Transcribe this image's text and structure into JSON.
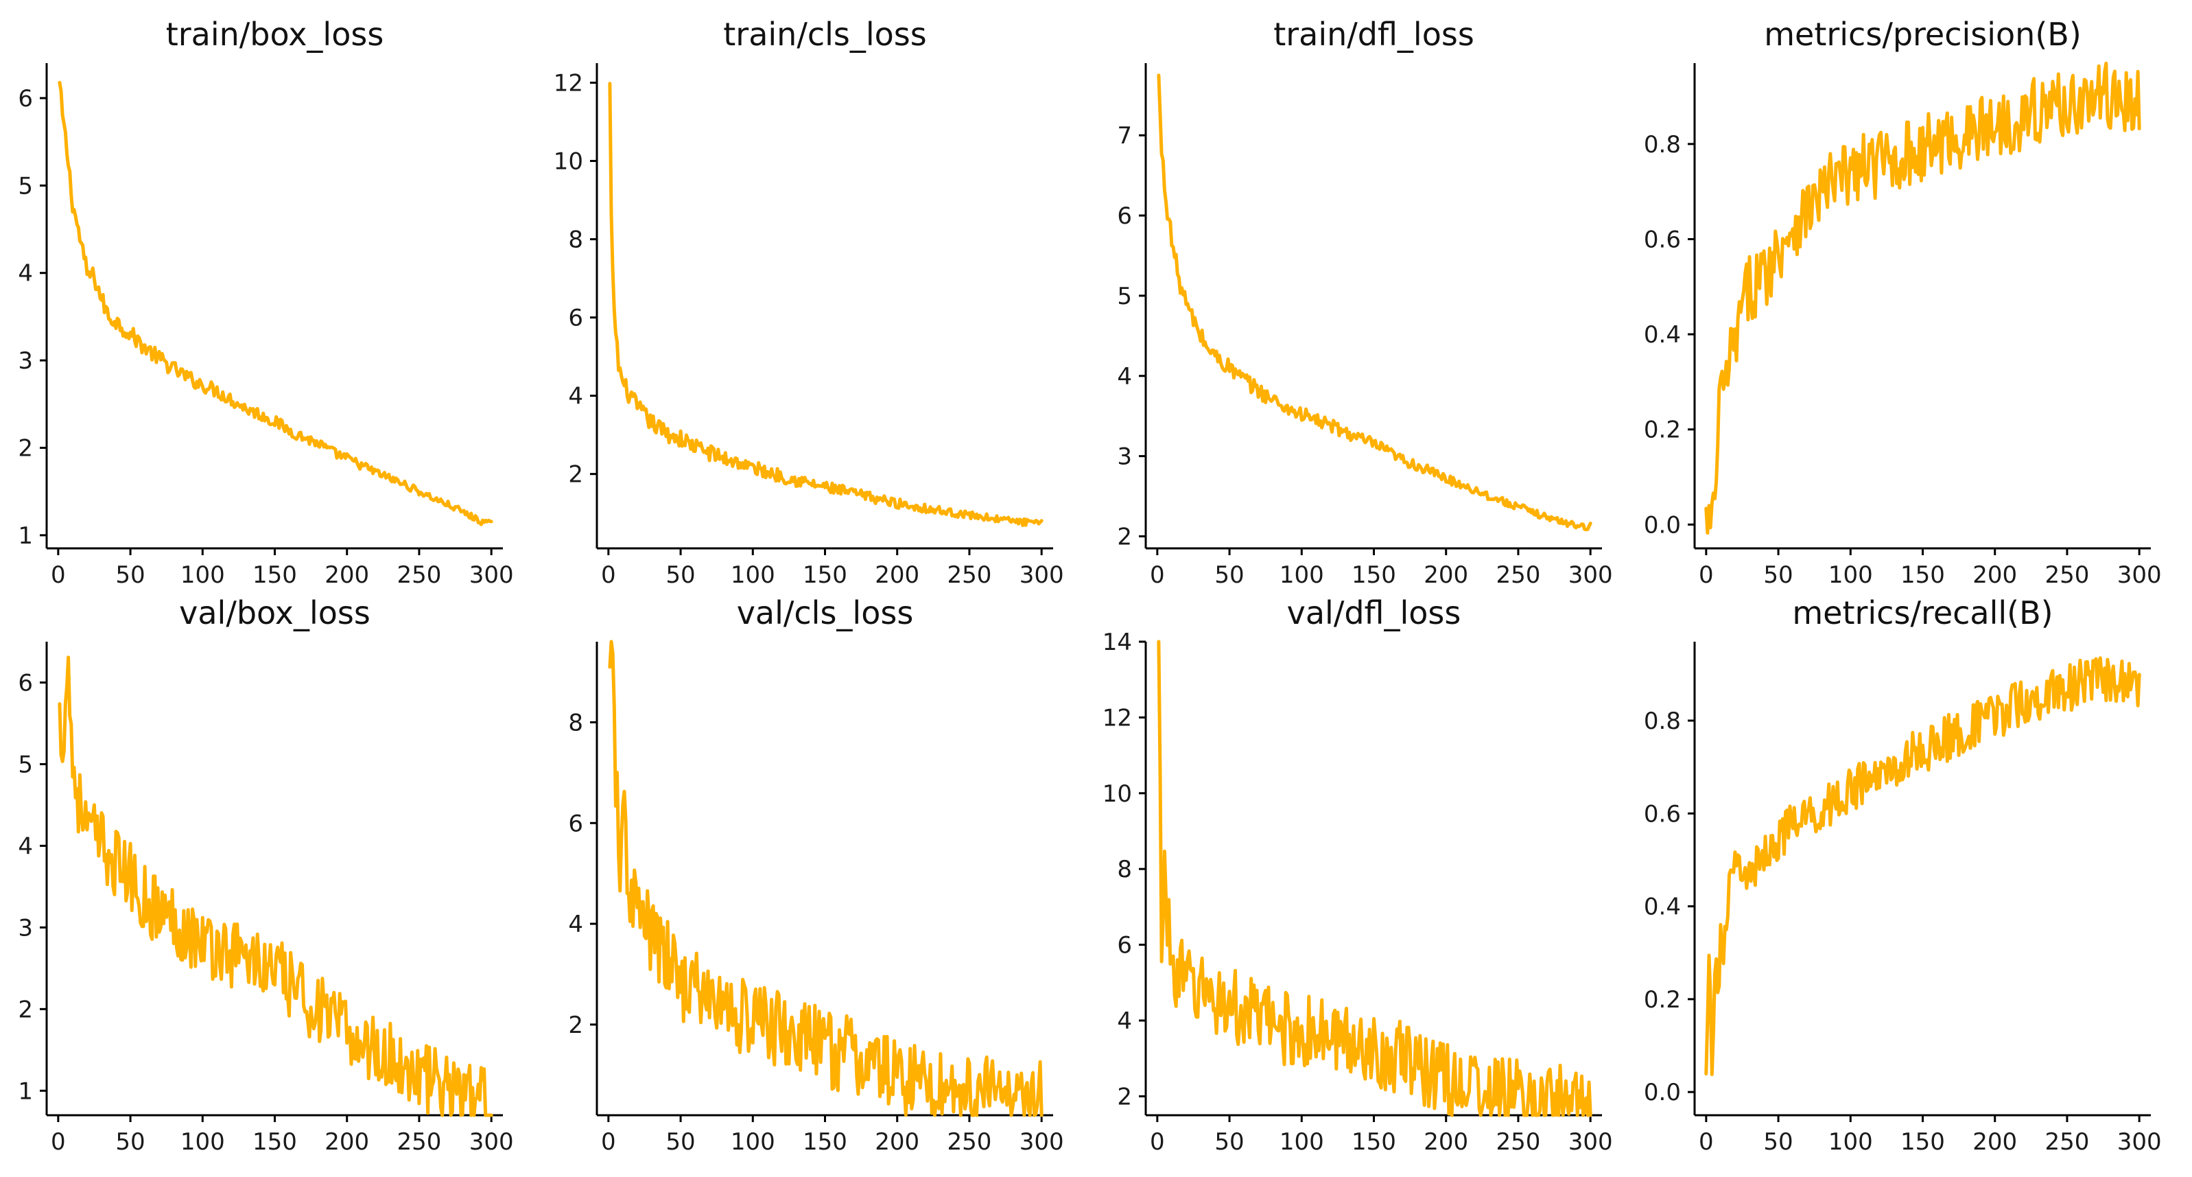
{
  "figure": {
    "line_color": "#FFB000"
  },
  "chart_data": [
    {
      "type": "line",
      "title": "train/box_loss",
      "xlim": [
        -8,
        308
      ],
      "ylim": [
        0.85,
        6.4
      ],
      "xticks": [
        0,
        50,
        100,
        150,
        200,
        250,
        300
      ],
      "yticks": [
        1,
        2,
        3,
        4,
        5,
        6
      ],
      "x": [
        1,
        3,
        6,
        10,
        15,
        20,
        25,
        30,
        35,
        40,
        50,
        60,
        70,
        80,
        90,
        100,
        110,
        120,
        130,
        140,
        150,
        160,
        170,
        180,
        190,
        200,
        210,
        220,
        230,
        240,
        250,
        260,
        270,
        280,
        290,
        300
      ],
      "y": [
        6.15,
        5.8,
        5.4,
        4.8,
        4.4,
        4.0,
        3.95,
        3.7,
        3.5,
        3.45,
        3.3,
        3.15,
        3.02,
        2.9,
        2.8,
        2.72,
        2.65,
        2.55,
        2.45,
        2.38,
        2.3,
        2.2,
        2.12,
        2.05,
        1.95,
        1.88,
        1.8,
        1.72,
        1.65,
        1.58,
        1.5,
        1.42,
        1.35,
        1.27,
        1.18,
        1.12
      ],
      "noise": 0.04
    },
    {
      "type": "line",
      "title": "train/cls_loss",
      "xlim": [
        -8,
        308
      ],
      "ylim": [
        0.1,
        12.5
      ],
      "xticks": [
        0,
        50,
        100,
        150,
        200,
        250,
        300
      ],
      "yticks": [
        2,
        4,
        6,
        8,
        10,
        12
      ],
      "x": [
        1,
        2,
        3,
        5,
        7,
        10,
        15,
        20,
        30,
        40,
        50,
        60,
        70,
        80,
        90,
        100,
        120,
        140,
        160,
        180,
        200,
        220,
        240,
        260,
        280,
        300
      ],
      "y": [
        11.9,
        8.5,
        7.0,
        5.6,
        4.8,
        4.3,
        4.0,
        3.7,
        3.3,
        3.05,
        2.9,
        2.7,
        2.55,
        2.4,
        2.3,
        2.15,
        1.95,
        1.75,
        1.58,
        1.42,
        1.25,
        1.12,
        1.0,
        0.9,
        0.8,
        0.72
      ],
      "noise": 0.04
    },
    {
      "type": "line",
      "title": "train/dfl_loss",
      "xlim": [
        -8,
        308
      ],
      "ylim": [
        1.85,
        7.9
      ],
      "xticks": [
        0,
        50,
        100,
        150,
        200,
        250,
        300
      ],
      "yticks": [
        2,
        3,
        4,
        5,
        6,
        7
      ],
      "x": [
        1,
        3,
        6,
        10,
        15,
        20,
        25,
        30,
        35,
        40,
        50,
        60,
        70,
        80,
        90,
        100,
        110,
        120,
        130,
        140,
        150,
        160,
        170,
        180,
        190,
        200,
        210,
        220,
        230,
        240,
        250,
        260,
        270,
        280,
        290,
        300
      ],
      "y": [
        7.7,
        6.8,
        6.2,
        5.7,
        5.2,
        4.9,
        4.7,
        4.5,
        4.35,
        4.25,
        4.1,
        3.95,
        3.82,
        3.7,
        3.6,
        3.52,
        3.45,
        3.38,
        3.3,
        3.22,
        3.15,
        3.05,
        2.95,
        2.88,
        2.8,
        2.72,
        2.65,
        2.58,
        2.5,
        2.43,
        2.37,
        2.3,
        2.24,
        2.18,
        2.14,
        2.12
      ],
      "noise": 0.04
    },
    {
      "type": "line",
      "title": "metrics/precision(B)",
      "xlim": [
        -8,
        308
      ],
      "ylim": [
        -0.05,
        0.97
      ],
      "xticks": [
        0,
        50,
        100,
        150,
        200,
        250,
        300
      ],
      "yticks": [
        0.0,
        0.2,
        0.4,
        0.6,
        0.8
      ],
      "yticklabels": [
        "0.0",
        "0.2",
        "0.4",
        "0.6",
        "0.8"
      ],
      "x": [
        0,
        3,
        6,
        8,
        10,
        12,
        15,
        20,
        25,
        30,
        40,
        50,
        60,
        70,
        80,
        90,
        100,
        120,
        140,
        160,
        180,
        200,
        220,
        240,
        260,
        280,
        300
      ],
      "y": [
        0.0,
        0.0,
        0.01,
        0.2,
        0.3,
        0.25,
        0.33,
        0.38,
        0.45,
        0.5,
        0.52,
        0.58,
        0.63,
        0.66,
        0.7,
        0.72,
        0.74,
        0.76,
        0.78,
        0.8,
        0.82,
        0.84,
        0.86,
        0.88,
        0.89,
        0.9,
        0.88
      ],
      "noise": 0.14
    },
    {
      "type": "line",
      "title": "val/box_loss",
      "xlim": [
        -8,
        308
      ],
      "ylim": [
        0.7,
        6.5
      ],
      "xticks": [
        0,
        50,
        100,
        150,
        200,
        250,
        300
      ],
      "yticks": [
        1,
        2,
        3,
        4,
        5,
        6
      ],
      "x": [
        1,
        3,
        5,
        7,
        10,
        15,
        20,
        30,
        40,
        50,
        60,
        70,
        80,
        90,
        100,
        110,
        120,
        130,
        140,
        150,
        160,
        170,
        180,
        190,
        200,
        210,
        220,
        230,
        240,
        250,
        260,
        270,
        280,
        290,
        300
      ],
      "y": [
        5.5,
        5.3,
        5.8,
        6.2,
        5.0,
        4.5,
        4.2,
        4.0,
        3.8,
        3.6,
        3.35,
        3.2,
        3.1,
        2.95,
        2.82,
        2.75,
        2.7,
        2.65,
        2.55,
        2.45,
        2.3,
        2.15,
        2.0,
        1.85,
        1.7,
        1.6,
        1.5,
        1.4,
        1.3,
        1.2,
        1.1,
        1.02,
        0.95,
        0.9,
        0.82
      ],
      "noise": 0.15
    },
    {
      "type": "line",
      "title": "val/cls_loss",
      "xlim": [
        -8,
        308
      ],
      "ylim": [
        0.2,
        9.6
      ],
      "xticks": [
        0,
        50,
        100,
        150,
        200,
        250,
        300
      ],
      "yticks": [
        2,
        4,
        6,
        8
      ],
      "x": [
        1,
        3,
        5,
        7,
        9,
        11,
        13,
        16,
        20,
        25,
        30,
        40,
        50,
        60,
        70,
        80,
        90,
        100,
        120,
        140,
        160,
        180,
        200,
        220,
        240,
        260,
        280,
        300
      ],
      "y": [
        8.6,
        9.2,
        7.0,
        5.5,
        5.0,
        6.5,
        5.0,
        4.6,
        4.3,
        4.0,
        3.7,
        3.3,
        2.9,
        2.7,
        2.5,
        2.35,
        2.2,
        2.1,
        1.9,
        1.65,
        1.45,
        1.22,
        1.0,
        0.85,
        0.72,
        0.62,
        0.55,
        0.5
      ],
      "noise": 0.17
    },
    {
      "type": "line",
      "title": "val/dfl_loss",
      "xlim": [
        -8,
        308
      ],
      "ylim": [
        1.5,
        14.0
      ],
      "xticks": [
        0,
        50,
        100,
        150,
        200,
        250,
        300
      ],
      "yticks": [
        2,
        4,
        6,
        8,
        10,
        12,
        14
      ],
      "x": [
        1,
        2,
        3,
        5,
        7,
        10,
        15,
        20,
        30,
        40,
        50,
        60,
        70,
        80,
        90,
        100,
        120,
        140,
        160,
        180,
        200,
        220,
        240,
        260,
        280,
        300
      ],
      "y": [
        13.4,
        10.0,
        6.5,
        8.0,
        6.5,
        5.6,
        5.2,
        5.0,
        4.8,
        4.6,
        4.4,
        4.2,
        4.05,
        3.9,
        3.8,
        3.7,
        3.55,
        3.4,
        3.1,
        2.8,
        2.5,
        2.25,
        2.05,
        1.92,
        1.85,
        1.8
      ],
      "noise": 0.16
    },
    {
      "type": "line",
      "title": "metrics/recall(B)",
      "xlim": [
        -8,
        308
      ],
      "ylim": [
        -0.05,
        0.97
      ],
      "xticks": [
        0,
        50,
        100,
        150,
        200,
        250,
        300
      ],
      "yticks": [
        0.0,
        0.2,
        0.4,
        0.6,
        0.8
      ],
      "yticklabels": [
        "0.0",
        "0.2",
        "0.4",
        "0.6",
        "0.8"
      ],
      "x": [
        0,
        2,
        4,
        6,
        8,
        10,
        12,
        15,
        20,
        25,
        30,
        40,
        50,
        60,
        70,
        80,
        90,
        100,
        120,
        140,
        160,
        180,
        200,
        220,
        240,
        260,
        280,
        300
      ],
      "y": [
        0.0,
        0.3,
        0.05,
        0.3,
        0.2,
        0.35,
        0.25,
        0.42,
        0.48,
        0.5,
        0.45,
        0.52,
        0.55,
        0.57,
        0.59,
        0.61,
        0.63,
        0.65,
        0.68,
        0.72,
        0.75,
        0.78,
        0.81,
        0.84,
        0.86,
        0.88,
        0.89,
        0.88
      ],
      "noise": 0.1
    }
  ]
}
